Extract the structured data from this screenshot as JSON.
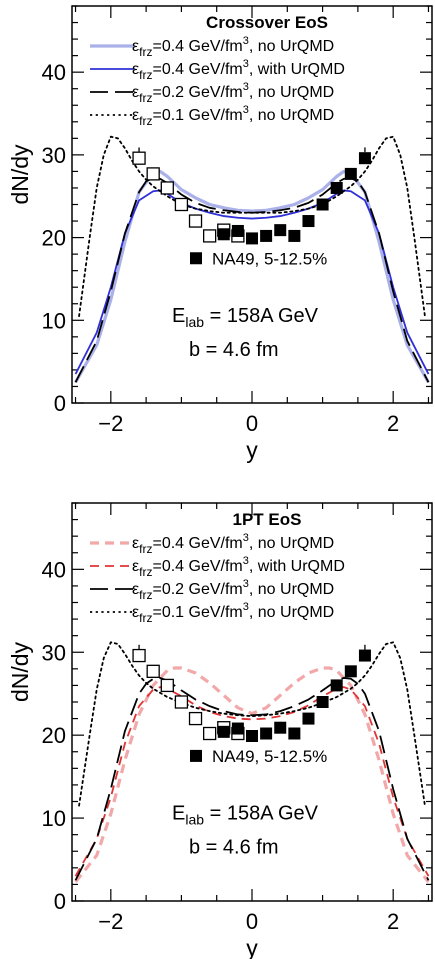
{
  "chart_data": [
    {
      "type": "line",
      "title": "Crossover EoS",
      "xlabel": "y",
      "ylabel": "dN/dy",
      "xlim": [
        -2.55,
        2.55
      ],
      "ylim": [
        0,
        48
      ],
      "xticks": [
        -2,
        0,
        2
      ],
      "xtick_labels": [
        "−2",
        "0",
        "2"
      ],
      "yticks": [
        0,
        10,
        20,
        30,
        40
      ],
      "ytick_labels": [
        "0",
        "10",
        "20",
        "30",
        "40"
      ],
      "legend_placement": "top",
      "series": [
        {
          "label_parts": [
            "ε",
            "frz",
            "=0.4 GeV/fm",
            "3",
            ", no UrQMD"
          ],
          "color": "#aab0e8",
          "style": "solid",
          "width": 3.2,
          "x": [
            -2.5,
            -2.2,
            -2.0,
            -1.8,
            -1.6,
            -1.4,
            -1.3,
            -1.2,
            -1.0,
            -0.8,
            -0.6,
            -0.4,
            -0.2,
            0.0,
            0.2,
            0.4,
            0.6,
            0.8,
            1.0,
            1.2,
            1.3,
            1.4,
            1.6,
            1.8,
            2.0,
            2.2,
            2.5
          ],
          "y": [
            2.5,
            7.0,
            12.5,
            19.5,
            25.5,
            27.8,
            28.0,
            27.4,
            25.8,
            24.8,
            24.0,
            23.6,
            23.3,
            23.2,
            23.3,
            23.6,
            24.0,
            24.8,
            25.8,
            27.4,
            28.0,
            27.8,
            25.5,
            19.5,
            12.5,
            7.0,
            2.5
          ]
        },
        {
          "label_parts": [
            "ε",
            "frz",
            "=0.4 GeV/fm",
            "3",
            ", with UrQMD"
          ],
          "color": "#3030d8",
          "style": "solid",
          "width": 1.8,
          "x": [
            -2.5,
            -2.2,
            -2.0,
            -1.8,
            -1.6,
            -1.4,
            -1.3,
            -1.2,
            -1.0,
            -0.8,
            -0.6,
            -0.4,
            -0.2,
            0.0,
            0.2,
            0.4,
            0.6,
            0.8,
            1.0,
            1.2,
            1.3,
            1.4,
            1.6,
            1.8,
            2.0,
            2.2,
            2.5
          ],
          "y": [
            3.5,
            8.5,
            14.0,
            20.5,
            24.5,
            25.6,
            25.7,
            25.3,
            24.2,
            23.5,
            23.0,
            22.6,
            22.4,
            22.3,
            22.4,
            22.6,
            23.0,
            23.5,
            24.2,
            25.3,
            25.7,
            25.6,
            24.5,
            20.5,
            14.0,
            8.5,
            3.5
          ]
        },
        {
          "label_parts": [
            "ε",
            "frz",
            "=0.2 GeV/fm",
            "3",
            ", no UrQMD"
          ],
          "color": "#000000",
          "style": "longdash",
          "width": 1.8,
          "x": [
            -2.5,
            -2.2,
            -2.0,
            -1.8,
            -1.6,
            -1.5,
            -1.4,
            -1.3,
            -1.2,
            -1.0,
            -0.8,
            -0.6,
            -0.4,
            -0.2,
            0.0,
            0.2,
            0.4,
            0.6,
            0.8,
            1.0,
            1.2,
            1.3,
            1.4,
            1.5,
            1.6,
            1.8,
            2.0,
            2.2,
            2.5
          ],
          "y": [
            2.5,
            7.5,
            13.5,
            20.5,
            25.5,
            26.8,
            27.2,
            27.1,
            26.6,
            25.2,
            24.2,
            23.6,
            23.3,
            23.1,
            23.0,
            23.1,
            23.3,
            23.6,
            24.2,
            25.2,
            26.6,
            27.1,
            27.2,
            26.8,
            25.5,
            20.5,
            13.5,
            7.5,
            2.5
          ]
        },
        {
          "label_parts": [
            "ε",
            "frz",
            "=0.1 GeV/fm",
            "3",
            ", no UrQMD"
          ],
          "color": "#000000",
          "style": "dotted",
          "width": 1.8,
          "x": [
            -2.45,
            -2.3,
            -2.2,
            -2.1,
            -2.0,
            -1.9,
            -1.8,
            -1.7,
            -1.6,
            -1.5,
            -1.4,
            -1.2,
            -1.0,
            -0.8,
            -0.6,
            -0.4,
            -0.2,
            0.0,
            0.2,
            0.4,
            0.6,
            0.8,
            1.0,
            1.2,
            1.4,
            1.5,
            1.6,
            1.7,
            1.8,
            1.9,
            2.0,
            2.1,
            2.2,
            2.3,
            2.45
          ],
          "y": [
            10.5,
            20.0,
            26.0,
            30.0,
            32.2,
            32.0,
            30.8,
            29.3,
            28.0,
            27.0,
            26.2,
            25.0,
            24.0,
            23.5,
            23.2,
            23.0,
            23.0,
            23.0,
            23.0,
            23.0,
            23.2,
            23.5,
            24.0,
            25.0,
            26.2,
            27.0,
            28.0,
            29.3,
            30.8,
            32.0,
            32.2,
            30.0,
            26.0,
            20.0,
            10.5
          ]
        }
      ],
      "data_points": {
        "label": "NA49, 5-12.5%",
        "filled": {
          "x": [
            -0.4,
            -0.2,
            0.0,
            0.2,
            0.4,
            0.6,
            0.8,
            1.0,
            1.2,
            1.4,
            1.6
          ],
          "y": [
            20.4,
            20.8,
            19.9,
            20.2,
            20.9,
            20.2,
            22.0,
            24.0,
            26.0,
            27.7,
            29.6
          ],
          "err": [
            0,
            0,
            0,
            0,
            0,
            0,
            0,
            0,
            0,
            0,
            1.3
          ]
        },
        "open": {
          "x": [
            -1.6,
            -1.4,
            -1.2,
            -1.0,
            -0.8,
            -0.6,
            -0.4,
            -0.2
          ],
          "y": [
            29.6,
            27.7,
            26.0,
            24.0,
            22.0,
            20.2,
            20.9,
            20.2
          ],
          "err": [
            1.3,
            0,
            0,
            0,
            0,
            0,
            0,
            0
          ]
        }
      },
      "annotation_lines": [
        [
          "E",
          "lab",
          " = 158A GeV"
        ],
        [
          "b = 4.6 fm"
        ]
      ]
    },
    {
      "type": "line",
      "title": "1PT EoS",
      "xlabel": "y",
      "ylabel": "dN/dy",
      "xlim": [
        -2.55,
        2.55
      ],
      "ylim": [
        0,
        48
      ],
      "xticks": [
        -2,
        0,
        2
      ],
      "xtick_labels": [
        "−2",
        "0",
        "2"
      ],
      "yticks": [
        0,
        10,
        20,
        30,
        40
      ],
      "ytick_labels": [
        "0",
        "10",
        "20",
        "30",
        "40"
      ],
      "legend_placement": "top",
      "series": [
        {
          "label_parts": [
            "ε",
            "frz",
            "=0.4 GeV/fm",
            "3",
            ", no UrQMD"
          ],
          "color": "#f2a8a8",
          "style": "dashed",
          "width": 3.2,
          "x": [
            -2.5,
            -2.2,
            -2.0,
            -1.8,
            -1.6,
            -1.4,
            -1.2,
            -1.1,
            -1.0,
            -0.8,
            -0.6,
            -0.4,
            -0.2,
            0.0,
            0.2,
            0.4,
            0.6,
            0.8,
            1.0,
            1.1,
            1.2,
            1.4,
            1.6,
            1.8,
            2.0,
            2.2,
            2.5
          ],
          "y": [
            2.3,
            5.5,
            10.5,
            17.0,
            22.5,
            26.0,
            27.8,
            28.1,
            28.1,
            27.5,
            26.3,
            24.8,
            23.3,
            22.6,
            23.3,
            24.8,
            26.3,
            27.5,
            28.1,
            28.1,
            27.8,
            26.0,
            22.5,
            17.0,
            10.5,
            5.5,
            2.3
          ]
        },
        {
          "label_parts": [
            "ε",
            "frz",
            "=0.4 GeV/fm",
            "3",
            ", with UrQMD"
          ],
          "color": "#e03434",
          "style": "dashed",
          "width": 1.8,
          "x": [
            -2.5,
            -2.2,
            -2.0,
            -1.8,
            -1.6,
            -1.4,
            -1.3,
            -1.2,
            -1.0,
            -0.8,
            -0.6,
            -0.4,
            -0.2,
            0.0,
            0.2,
            0.4,
            0.6,
            0.8,
            1.0,
            1.2,
            1.3,
            1.4,
            1.6,
            1.8,
            2.0,
            2.2,
            2.5
          ],
          "y": [
            3.0,
            7.5,
            12.5,
            19.0,
            23.5,
            25.5,
            25.8,
            25.6,
            24.7,
            23.6,
            22.8,
            22.3,
            22.0,
            21.9,
            22.0,
            22.3,
            22.8,
            23.6,
            24.7,
            25.6,
            25.8,
            25.5,
            23.5,
            19.0,
            12.5,
            7.5,
            3.0
          ]
        },
        {
          "label_parts": [
            "ε",
            "frz",
            "=0.2 GeV/fm",
            "3",
            ", no UrQMD"
          ],
          "color": "#000000",
          "style": "longdash",
          "width": 1.8,
          "x": [
            -2.5,
            -2.2,
            -2.0,
            -1.8,
            -1.6,
            -1.5,
            -1.4,
            -1.3,
            -1.2,
            -1.0,
            -0.8,
            -0.6,
            -0.4,
            -0.2,
            0.0,
            0.2,
            0.4,
            0.6,
            0.8,
            1.0,
            1.2,
            1.3,
            1.4,
            1.5,
            1.6,
            1.8,
            2.0,
            2.2,
            2.5
          ],
          "y": [
            2.5,
            7.5,
            13.5,
            20.5,
            25.0,
            26.2,
            26.8,
            26.9,
            26.6,
            25.4,
            24.3,
            23.5,
            22.9,
            22.5,
            22.4,
            22.5,
            22.9,
            23.5,
            24.3,
            25.4,
            26.6,
            26.9,
            26.8,
            26.2,
            25.0,
            20.5,
            13.5,
            7.5,
            2.5
          ]
        },
        {
          "label_parts": [
            "ε",
            "frz",
            "=0.1 GeV/fm",
            "3",
            ", no UrQMD"
          ],
          "color": "#000000",
          "style": "dotted",
          "width": 1.8,
          "x": [
            -2.45,
            -2.3,
            -2.2,
            -2.1,
            -2.0,
            -1.9,
            -1.8,
            -1.7,
            -1.6,
            -1.5,
            -1.4,
            -1.2,
            -1.0,
            -0.8,
            -0.6,
            -0.4,
            -0.2,
            0.0,
            0.2,
            0.4,
            0.6,
            0.8,
            1.0,
            1.2,
            1.4,
            1.5,
            1.6,
            1.7,
            1.8,
            1.9,
            2.0,
            2.1,
            2.2,
            2.3,
            2.45
          ],
          "y": [
            11.5,
            20.0,
            25.5,
            29.3,
            31.2,
            31.0,
            29.8,
            28.4,
            27.2,
            26.3,
            25.6,
            24.6,
            23.9,
            23.3,
            22.9,
            22.6,
            22.4,
            22.3,
            22.4,
            22.6,
            22.9,
            23.3,
            23.9,
            24.6,
            25.6,
            26.3,
            27.2,
            28.4,
            29.8,
            31.0,
            31.2,
            29.3,
            25.5,
            20.0,
            11.5
          ]
        }
      ],
      "data_points": {
        "label": "NA49, 5-12.5%",
        "filled": {
          "x": [
            -0.4,
            -0.2,
            0.0,
            0.2,
            0.4,
            0.6,
            0.8,
            1.0,
            1.2,
            1.4,
            1.6
          ],
          "y": [
            20.4,
            20.8,
            19.9,
            20.2,
            20.9,
            20.2,
            22.0,
            24.0,
            26.0,
            27.7,
            29.6
          ],
          "err": [
            0,
            0,
            0,
            0,
            0,
            0,
            0,
            0,
            0,
            0,
            1.3
          ]
        },
        "open": {
          "x": [
            -1.6,
            -1.4,
            -1.2,
            -1.0,
            -0.8,
            -0.6,
            -0.4,
            -0.2
          ],
          "y": [
            29.6,
            27.7,
            26.0,
            24.0,
            22.0,
            20.2,
            20.9,
            20.2
          ],
          "err": [
            1.3,
            0,
            0,
            0,
            0,
            0,
            0,
            0
          ]
        }
      },
      "annotation_lines": [
        [
          "E",
          "lab",
          " = 158A GeV"
        ],
        [
          "b = 4.6 fm"
        ]
      ]
    }
  ]
}
